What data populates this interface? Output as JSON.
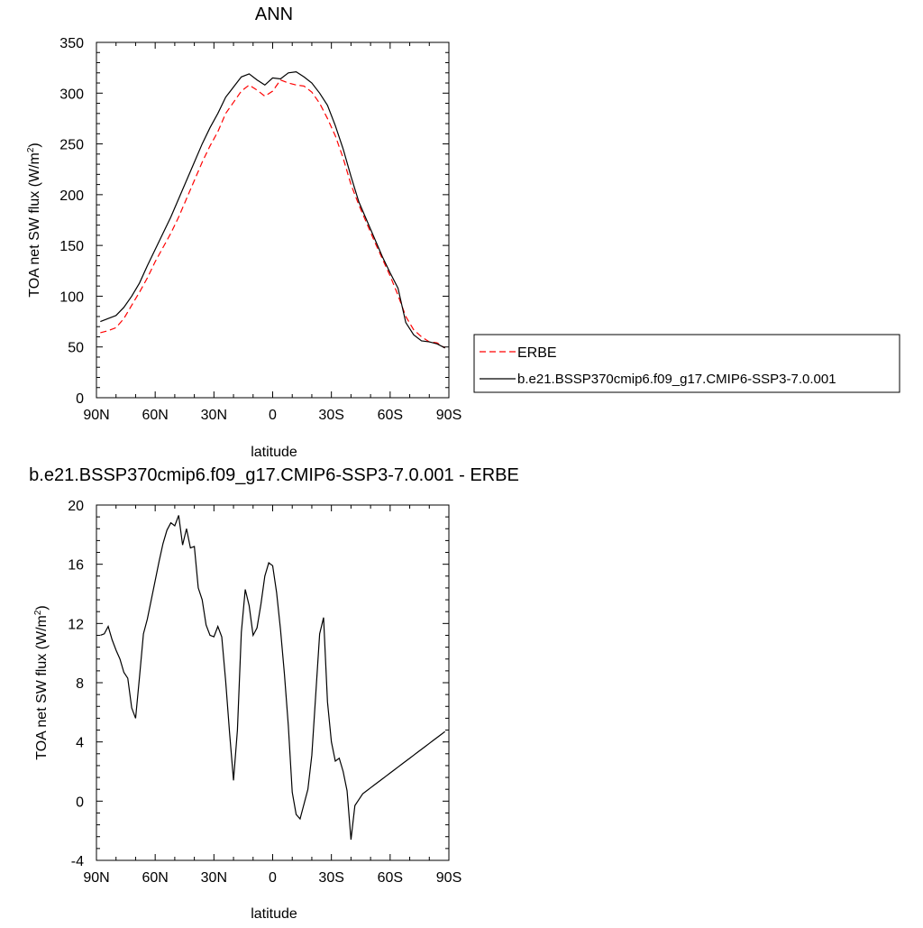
{
  "chart_data": [
    {
      "type": "line",
      "title": "ANN",
      "xlabel": "latitude",
      "ylabel": "TOA net SW flux (W/m",
      "ylabel_sup": "2",
      "ylabel_tail": ")",
      "xlim": [
        90,
        -90
      ],
      "ylim": [
        0,
        350
      ],
      "xticks": [
        {
          "value": 90,
          "label": "90N"
        },
        {
          "value": 60,
          "label": "60N"
        },
        {
          "value": 30,
          "label": "30N"
        },
        {
          "value": 0,
          "label": "0"
        },
        {
          "value": -30,
          "label": "30S"
        },
        {
          "value": -60,
          "label": "60S"
        },
        {
          "value": -90,
          "label": "90S"
        }
      ],
      "yticks": [
        0,
        50,
        100,
        150,
        200,
        250,
        300,
        350
      ],
      "legend_position": "right",
      "series": [
        {
          "name": "ERBE",
          "color": "#ff0000",
          "style": "dashed",
          "x": [
            88,
            84,
            80,
            76,
            72,
            68,
            64,
            60,
            56,
            52,
            48,
            44,
            40,
            36,
            32,
            28,
            24,
            20,
            16,
            12,
            8,
            4,
            0,
            -4,
            -8,
            -12,
            -16,
            -20,
            -24,
            -28,
            -32,
            -36,
            -40,
            -44,
            -48,
            -52,
            -56,
            -60,
            -64,
            -68,
            -72,
            -76,
            -80,
            -84,
            -88
          ],
          "y": [
            64,
            66,
            69,
            78,
            91,
            104,
            118,
            134,
            148,
            162,
            178,
            196,
            214,
            232,
            248,
            262,
            280,
            291,
            302,
            308,
            303,
            297,
            302,
            313,
            310,
            308,
            307,
            301,
            290,
            275,
            258,
            236,
            210,
            190,
            172,
            154,
            137,
            120,
            101,
            80,
            67,
            60,
            55,
            54,
            49
          ]
        },
        {
          "name": "b.e21.BSSP370cmip6.f09_g17.CMIP6-SSP3-7.0.001",
          "color": "#000000",
          "style": "solid",
          "x": [
            88,
            84,
            80,
            76,
            72,
            68,
            64,
            60,
            56,
            52,
            48,
            44,
            40,
            36,
            32,
            28,
            24,
            20,
            16,
            12,
            8,
            4,
            0,
            -4,
            -8,
            -12,
            -16,
            -20,
            -24,
            -28,
            -32,
            -36,
            -40,
            -44,
            -48,
            -52,
            -56,
            -60,
            -64,
            -68,
            -72,
            -76,
            -80,
            -84,
            -88
          ],
          "y": [
            75,
            78,
            81,
            89,
            100,
            113,
            130,
            146,
            162,
            178,
            196,
            214,
            232,
            250,
            266,
            280,
            296,
            306,
            316,
            319,
            313,
            308,
            315,
            314,
            320,
            321,
            316,
            310,
            300,
            288,
            268,
            245,
            218,
            193,
            175,
            157,
            139,
            123,
            108,
            74,
            62,
            56,
            55,
            53,
            49
          ]
        }
      ]
    },
    {
      "type": "line",
      "title": "b.e21.BSSP370cmip6.f09_g17.CMIP6-SSP3-7.0.001 - ERBE",
      "xlabel": "latitude",
      "ylabel": "TOA net SW flux (W/m",
      "ylabel_sup": "2",
      "ylabel_tail": ")",
      "xlim": [
        90,
        -90
      ],
      "ylim": [
        -4,
        20
      ],
      "xticks": [
        {
          "value": 90,
          "label": "90N"
        },
        {
          "value": 60,
          "label": "60N"
        },
        {
          "value": 30,
          "label": "30N"
        },
        {
          "value": 0,
          "label": "0"
        },
        {
          "value": -30,
          "label": "30S"
        },
        {
          "value": -60,
          "label": "60S"
        },
        {
          "value": -90,
          "label": "90S"
        }
      ],
      "yticks": [
        -4,
        0,
        4,
        8,
        12,
        16,
        20
      ],
      "series": [
        {
          "color": "#000000",
          "style": "solid",
          "x": [
            88,
            86,
            84,
            82,
            80,
            78,
            76,
            74,
            72,
            70,
            68,
            66,
            64,
            62,
            60,
            58,
            56,
            54,
            52,
            50,
            48,
            46,
            44,
            42,
            40,
            38,
            36,
            34,
            32,
            30,
            28,
            26,
            24,
            22,
            20,
            18,
            16,
            14,
            12,
            10,
            8,
            6,
            4,
            2,
            0,
            -2,
            -4,
            -6,
            -8,
            -10,
            -12,
            -14,
            -16,
            -18,
            -20,
            -22,
            -24,
            -26,
            -28,
            -30,
            -32,
            -34,
            -36,
            -38,
            -40,
            -42,
            -44,
            -46,
            -48,
            -50,
            -52,
            -54,
            -56,
            -58,
            -60,
            -62,
            -64,
            -66,
            -68,
            -70,
            -72,
            -74,
            -76,
            -78,
            -80,
            -82,
            -84,
            -86,
            -88
          ],
          "y": [
            11.2,
            11.3,
            11.8,
            10.9,
            10.2,
            9.6,
            8.7,
            8.3,
            6.3,
            5.6,
            8.4,
            11.3,
            12.3,
            13.6,
            14.9,
            16.2,
            17.4,
            18.3,
            18.8,
            18.6,
            19.3,
            17.3,
            18.4,
            17.1,
            17.2,
            14.4,
            13.6,
            11.9,
            11.2,
            11.1,
            11.8,
            11.1,
            8.1,
            4.6,
            1.4,
            4.8,
            11.4,
            14.3,
            13.2,
            11.2,
            11.7,
            13.3,
            15.2,
            16.1,
            15.9,
            14.1,
            11.6,
            8.6,
            5.1,
            0.6,
            -0.9,
            -1.2,
            -0.2,
            0.8,
            3.1,
            7.2,
            11.3,
            12.4,
            6.7,
            4.0,
            2.7,
            2.9,
            2.0,
            0.7,
            -2.6,
            -0.3,
            0.1,
            0.5,
            0.7,
            0.9,
            1.1,
            1.3,
            1.5,
            1.7,
            1.9,
            2.1,
            2.3,
            2.5,
            2.7,
            2.9,
            3.1,
            3.3,
            3.5,
            3.7,
            3.9,
            4.1,
            4.3,
            4.5,
            4.7
          ]
        }
      ]
    }
  ]
}
